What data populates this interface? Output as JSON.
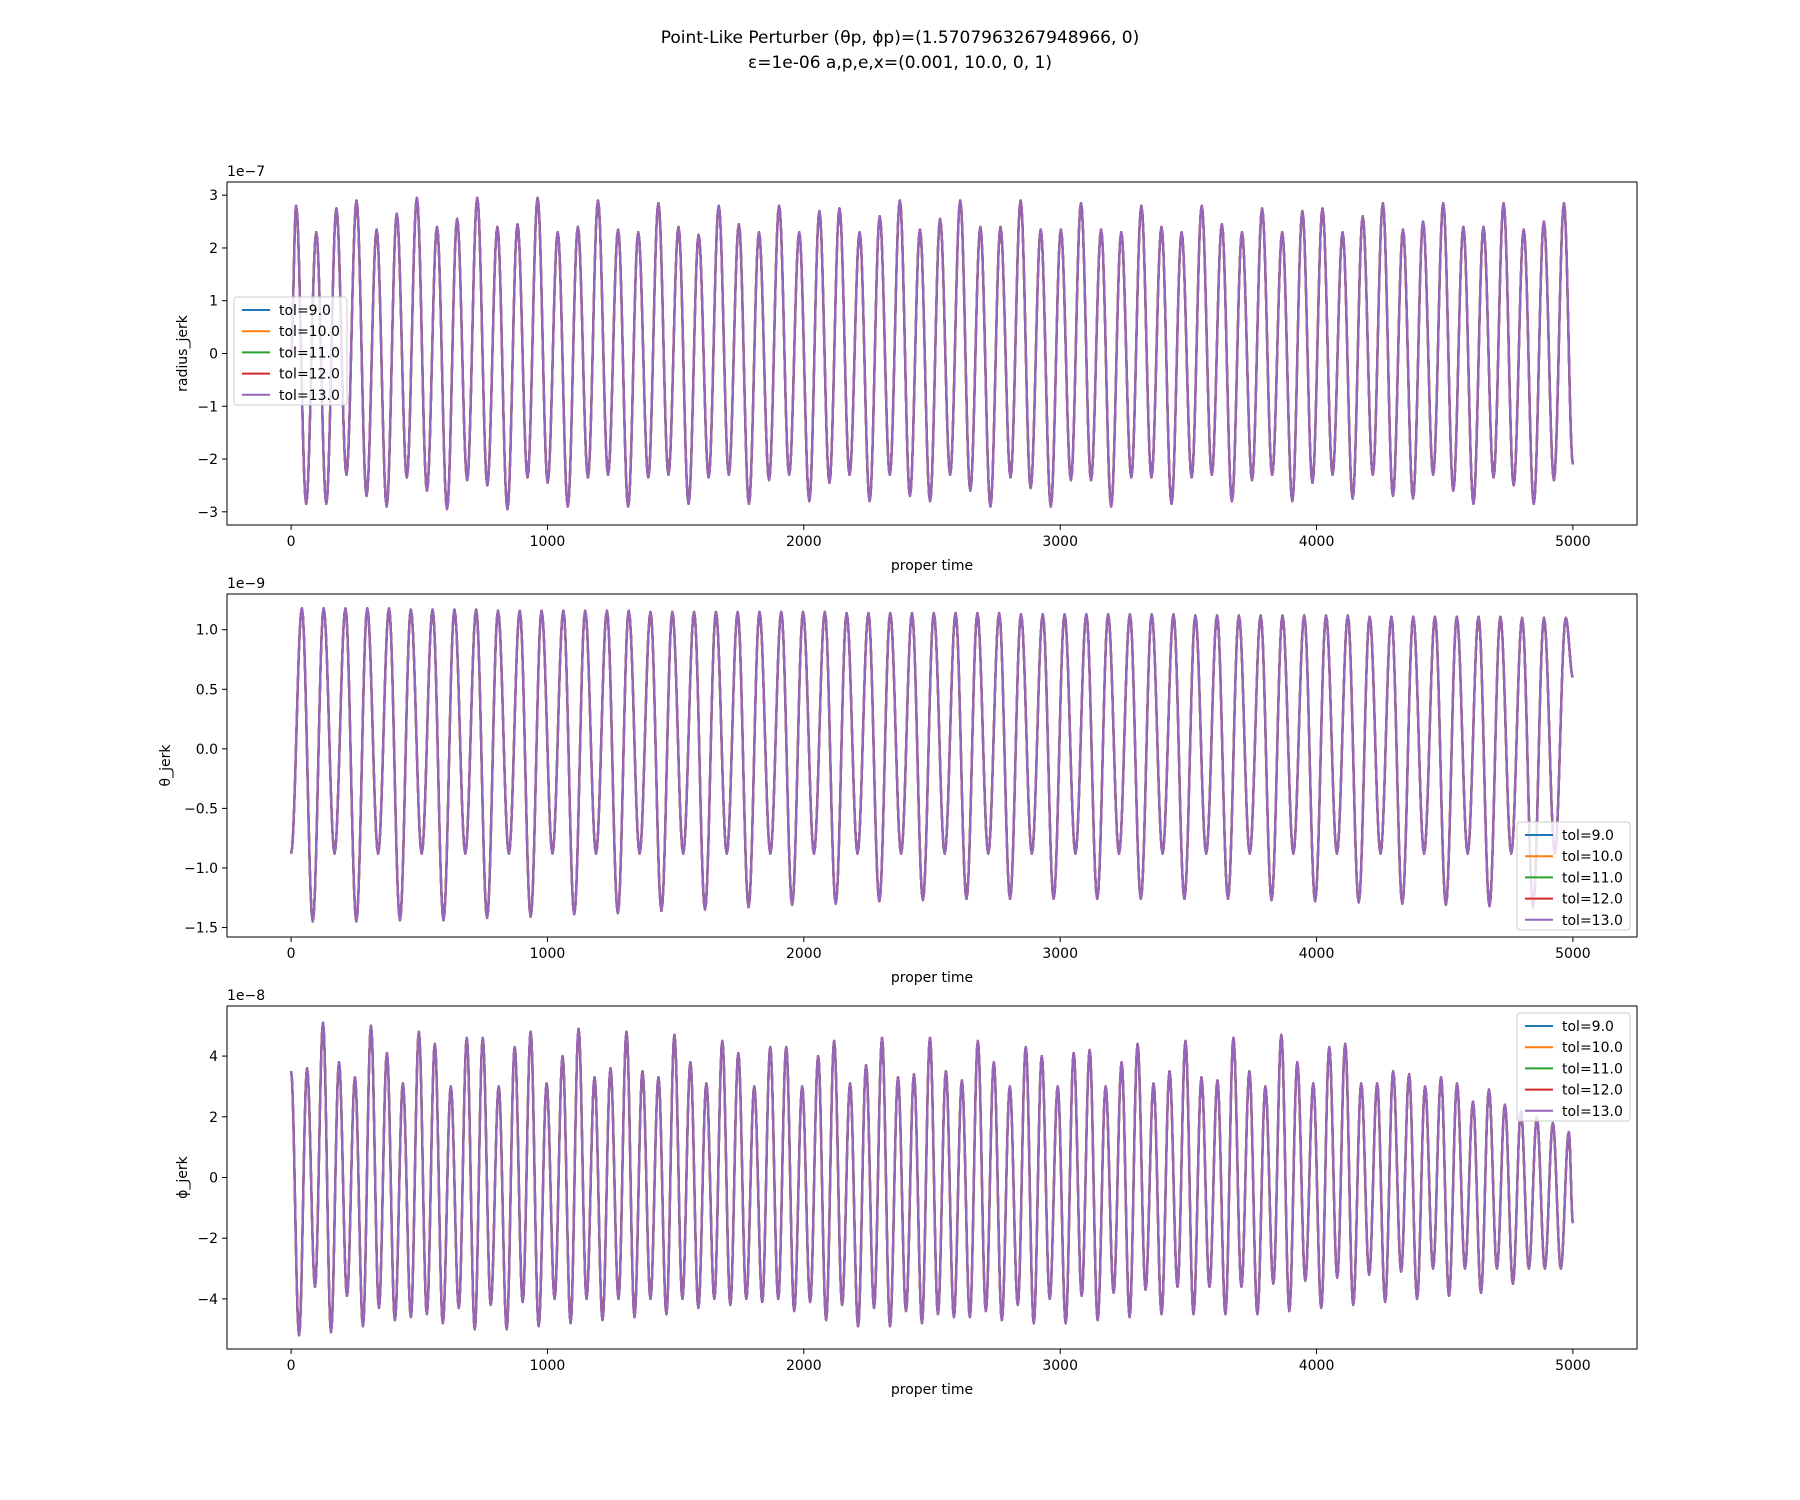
{
  "figure": {
    "title_line1": "Point-Like Perturber (θp, ϕp)=(1.5707963267948966, 0)",
    "title_line2": "ε=1e-06 a,p,e,x=(0.001, 10.0, 0, 1)"
  },
  "colors": {
    "tol=9.0": "#1f77b4",
    "tol=10.0": "#ff7f0e",
    "tol=11.0": "#2ca02c",
    "tol=12.0": "#d62728",
    "tol=13.0": "#9467bd"
  },
  "chart_data": [
    {
      "type": "line",
      "xlabel": "proper time",
      "ylabel": "radius_jerk",
      "offset_text": "1e−7",
      "xlim": [
        -250,
        5250
      ],
      "ylim": [
        -3.25,
        3.25
      ],
      "xticks": [
        0,
        1000,
        2000,
        3000,
        4000,
        5000
      ],
      "xtick_labels": [
        "0",
        "1000",
        "2000",
        "3000",
        "4000",
        "5000"
      ],
      "yticks": [
        -3,
        -2,
        -1,
        0,
        1,
        2,
        3
      ],
      "ytick_labels": [
        "−3",
        "−2",
        "−1",
        "0",
        "1",
        "2",
        "3"
      ],
      "legend_position": "center-left",
      "legend": [
        "tol=9.0",
        "tol=10.0",
        "tol=11.0",
        "tol=12.0",
        "tol=13.0"
      ],
      "signal": {
        "x_start": 0,
        "x_end": 5000,
        "period": 78.5,
        "y_end": -2.1,
        "peaks": [
          2.8,
          2.3,
          2.75,
          2.9,
          2.35,
          2.65,
          2.95,
          2.4,
          2.55,
          2.95,
          2.4,
          2.45,
          2.95,
          2.3,
          2.4,
          2.9,
          2.35,
          2.3,
          2.85,
          2.4,
          2.25,
          2.8,
          2.45,
          2.3,
          2.8,
          2.3,
          2.7,
          2.75,
          2.3,
          2.6,
          2.9,
          2.35,
          2.55,
          2.9,
          2.4,
          2.4,
          2.9,
          2.35,
          2.35,
          2.85,
          2.35,
          2.3,
          2.8,
          2.4,
          2.3,
          2.8,
          2.45,
          2.3,
          2.75,
          2.3,
          2.7,
          2.75,
          2.3,
          2.6,
          2.85,
          2.35,
          2.5,
          2.85,
          2.4,
          2.4,
          2.85,
          2.35,
          2.5,
          2.85,
          2.5
        ],
        "troughs": [
          -2.85,
          -2.85,
          -2.3,
          -2.7,
          -2.9,
          -2.35,
          -2.6,
          -2.95,
          -2.4,
          -2.5,
          -2.95,
          -2.35,
          -2.45,
          -2.9,
          -2.35,
          -2.3,
          -2.9,
          -2.35,
          -2.3,
          -2.85,
          -2.35,
          -2.3,
          -2.85,
          -2.4,
          -2.3,
          -2.8,
          -2.45,
          -2.3,
          -2.8,
          -2.3,
          -2.7,
          -2.8,
          -2.3,
          -2.6,
          -2.9,
          -2.35,
          -2.55,
          -2.9,
          -2.4,
          -2.4,
          -2.9,
          -2.35,
          -2.35,
          -2.85,
          -2.35,
          -2.3,
          -2.8,
          -2.4,
          -2.3,
          -2.8,
          -2.45,
          -2.3,
          -2.75,
          -2.3,
          -2.7,
          -2.75,
          -2.3,
          -2.6,
          -2.85,
          -2.35,
          -2.5,
          -2.85,
          -2.4,
          -2.4
        ]
      }
    },
    {
      "type": "line",
      "xlabel": "proper time",
      "ylabel": "θ_jerk",
      "offset_text": "1e−9",
      "xlim": [
        -250,
        5250
      ],
      "ylim": [
        -1.58,
        1.3
      ],
      "xticks": [
        0,
        1000,
        2000,
        3000,
        4000,
        5000
      ],
      "xtick_labels": [
        "0",
        "1000",
        "2000",
        "3000",
        "4000",
        "5000"
      ],
      "yticks": [
        -1.5,
        -1.0,
        -0.5,
        0.0,
        0.5,
        1.0
      ],
      "ytick_labels": [
        "−1.5",
        "−1.0",
        "−0.5",
        "0.0",
        "0.5",
        "1.0"
      ],
      "legend_position": "lower-right",
      "legend": [
        "tol=9.0",
        "tol=10.0",
        "tol=11.0",
        "tol=12.0",
        "tol=13.0"
      ],
      "signal": {
        "x_start": 0,
        "x_end": 5000,
        "y_start": -0.88,
        "y_end": 0.6,
        "peak_times": [
          42,
          127,
          212,
          297,
          382,
          467,
          552,
          637,
          722,
          807,
          892,
          977,
          1062,
          1147,
          1232,
          1317,
          1402,
          1487,
          1572,
          1657,
          1742,
          1827,
          1912,
          1997,
          2082,
          2167,
          2252,
          2337,
          2422,
          2507,
          2592,
          2677,
          2762,
          2847,
          2932,
          3017,
          3102,
          3187,
          3272,
          3357,
          3442,
          3527,
          3612,
          3697,
          3782,
          3867,
          3952,
          4037,
          4122,
          4207,
          4292,
          4377,
          4462,
          4547,
          4632,
          4717,
          4802,
          4887,
          4972
        ],
        "peaks": [
          1.18,
          1.18,
          1.18,
          1.18,
          1.18,
          1.17,
          1.17,
          1.17,
          1.17,
          1.16,
          1.16,
          1.16,
          1.16,
          1.16,
          1.16,
          1.16,
          1.15,
          1.15,
          1.15,
          1.15,
          1.15,
          1.15,
          1.15,
          1.15,
          1.15,
          1.14,
          1.14,
          1.14,
          1.14,
          1.14,
          1.14,
          1.14,
          1.14,
          1.13,
          1.13,
          1.13,
          1.13,
          1.13,
          1.13,
          1.13,
          1.13,
          1.12,
          1.12,
          1.12,
          1.12,
          1.12,
          1.12,
          1.12,
          1.12,
          1.11,
          1.11,
          1.11,
          1.11,
          1.11,
          1.11,
          1.11,
          1.1,
          1.1,
          1.1
        ],
        "troughs": [
          -1.45,
          -0.88,
          -1.45,
          -0.88,
          -1.44,
          -0.88,
          -1.44,
          -0.88,
          -1.42,
          -0.88,
          -1.41,
          -0.88,
          -1.39,
          -0.88,
          -1.38,
          -0.88,
          -1.36,
          -0.88,
          -1.35,
          -0.88,
          -1.33,
          -0.88,
          -1.31,
          -0.88,
          -1.3,
          -0.88,
          -1.28,
          -0.88,
          -1.27,
          -0.88,
          -1.26,
          -0.88,
          -1.26,
          -0.88,
          -1.26,
          -0.88,
          -1.26,
          -0.88,
          -1.26,
          -0.88,
          -1.26,
          -0.88,
          -1.26,
          -0.88,
          -1.27,
          -0.88,
          -1.28,
          -0.88,
          -1.29,
          -0.88,
          -1.3,
          -0.88,
          -1.31,
          -0.88,
          -1.32,
          -0.88,
          -1.33,
          -0.88
        ]
      }
    },
    {
      "type": "line",
      "xlabel": "proper time",
      "ylabel": "ϕ_jerk",
      "offset_text": "1e−8",
      "xlim": [
        -250,
        5250
      ],
      "ylim": [
        -5.65,
        5.65
      ],
      "xticks": [
        0,
        1000,
        2000,
        3000,
        4000,
        5000
      ],
      "xtick_labels": [
        "0",
        "1000",
        "2000",
        "3000",
        "4000",
        "5000"
      ],
      "yticks": [
        -4,
        -2,
        0,
        2,
        4
      ],
      "ytick_labels": [
        "−4",
        "−2",
        "0",
        "2",
        "4"
      ],
      "legend_position": "upper-right",
      "legend": [
        "tol=9.0",
        "tol=10.0",
        "tol=11.0",
        "tol=12.0",
        "tol=13.0"
      ],
      "signal": {
        "x_start": 0,
        "x_end": 5000,
        "period": 62.3,
        "y_start": 3.5,
        "y_end": -1.5,
        "peaks": [
          3.6,
          5.1,
          3.8,
          3.3,
          5.0,
          4.1,
          3.1,
          4.8,
          4.4,
          3.0,
          4.6,
          4.6,
          3.0,
          4.3,
          4.8,
          3.1,
          4.0,
          4.9,
          3.3,
          3.6,
          4.8,
          3.5,
          3.3,
          4.7,
          3.8,
          3.1,
          4.5,
          4.1,
          3.0,
          4.3,
          4.3,
          3.0,
          4.0,
          4.5,
          3.1,
          3.7,
          4.6,
          3.3,
          3.4,
          4.6,
          3.5,
          3.2,
          4.5,
          3.8,
          3.0,
          4.3,
          4.0,
          3.0,
          4.1,
          4.2,
          3.0,
          3.8,
          4.4,
          3.1,
          3.5,
          4.5,
          3.3,
          3.2,
          4.6,
          3.5,
          3.0,
          4.7,
          3.8,
          3.1,
          4.3,
          4.4,
          3.1,
          3.1,
          3.5,
          3.4,
          3.0,
          3.3,
          3.1,
          2.5,
          2.9,
          2.4,
          2.2,
          2.0,
          1.8,
          1.5
        ],
        "troughs": [
          -5.2,
          -3.6,
          -5.1,
          -3.9,
          -4.9,
          -4.3,
          -4.7,
          -4.6,
          -4.5,
          -4.8,
          -4.3,
          -5.0,
          -4.2,
          -5.0,
          -4.1,
          -4.9,
          -4.0,
          -4.8,
          -4.0,
          -4.7,
          -4.0,
          -4.6,
          -4.0,
          -4.5,
          -4.0,
          -4.3,
          -4.0,
          -4.2,
          -4.0,
          -4.1,
          -4.0,
          -4.4,
          -4.1,
          -4.7,
          -4.2,
          -4.9,
          -4.3,
          -4.9,
          -4.4,
          -4.8,
          -4.5,
          -4.6,
          -4.6,
          -4.4,
          -4.7,
          -4.2,
          -4.8,
          -4.0,
          -4.8,
          -3.9,
          -4.7,
          -3.8,
          -4.6,
          -3.7,
          -4.5,
          -3.6,
          -4.5,
          -3.6,
          -4.5,
          -3.6,
          -4.5,
          -3.5,
          -4.4,
          -3.4,
          -4.3,
          -3.3,
          -4.2,
          -3.2,
          -4.1,
          -3.1,
          -4.0,
          -3.0,
          -3.9,
          -3.0,
          -3.8,
          -3.0,
          -3.5,
          -3.0,
          -3.0,
          -3.0
        ]
      }
    }
  ]
}
